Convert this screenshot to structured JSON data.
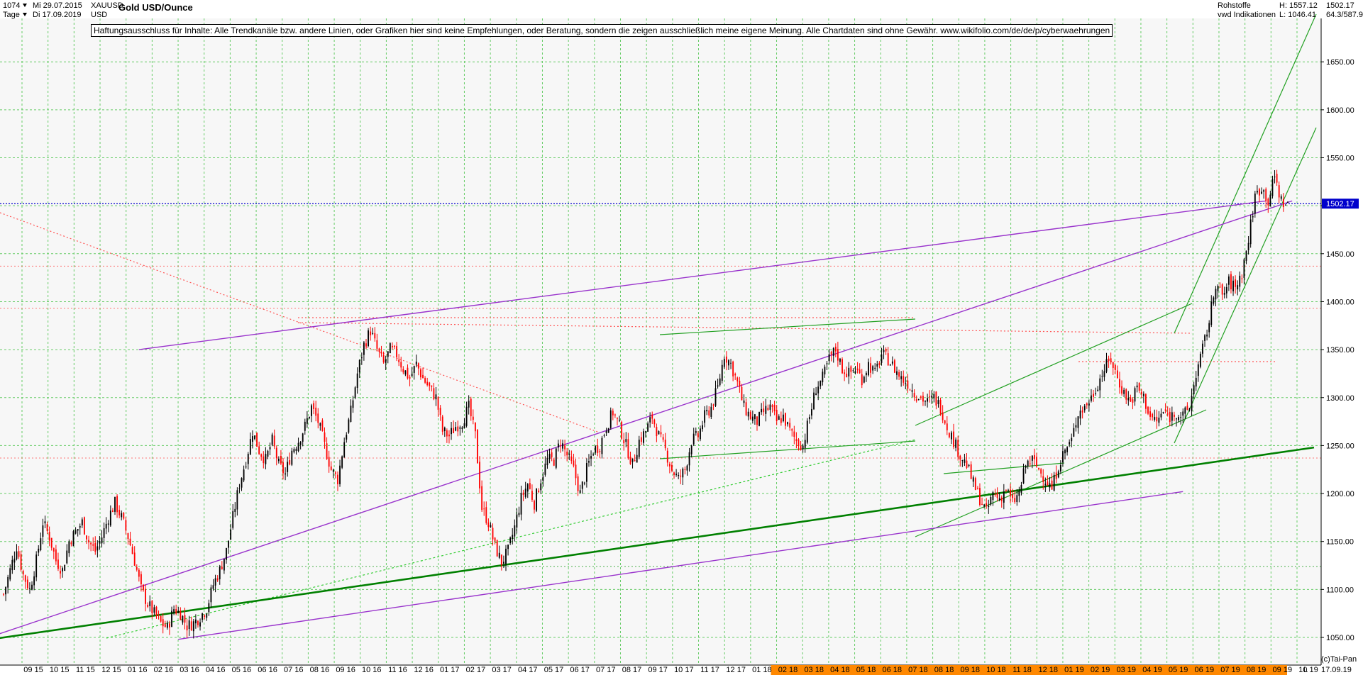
{
  "header": {
    "value_field": "1074",
    "date_start": "Mi 29.07.2015",
    "period": "Tage",
    "date_end": "Di 17.09.2019",
    "symbol": "XAUUSD",
    "currency": "USD",
    "title": "Gold USD/Ounce",
    "category": "Rohstoffe",
    "indicator": "vwd Indikationen",
    "high": "H: 1557.12",
    "low": "L: 1046.41",
    "last": "1502.17",
    "range": "64.3/587.9"
  },
  "disclaimer": "Haftungsausschluss für Inhalte: Alle Trendkanäle bzw. andere Linien, oder Grafiken hier sind keine Empfehlungen, oder Beratung, sondern die zeigen ausschließlich meine eigene Meinung. Alle Chartdaten sind ohne Gewähr.  www.wikifolio.com/de/de/p/cyberwaehrungen",
  "footer": {
    "credit": "(c)Tai-Pan",
    "scale_mode": "L",
    "date": "17.09.19"
  },
  "colors": {
    "up_candle": "#000000",
    "down_candle": "#ff0000",
    "grid": "#66cc66",
    "purple_line": "#9933cc",
    "green_line": "#22a022",
    "dark_green_line": "#008000",
    "red_dotted": "#ff5555",
    "price_line": "#0000cc",
    "future_axis": "#ff8800"
  },
  "chart_data": {
    "type": "candlestick",
    "title": "Gold USD/Ounce",
    "y_ticks": [
      1050,
      1100,
      1150,
      1200,
      1250,
      1300,
      1350,
      1400,
      1450,
      1500,
      1550,
      1600,
      1650
    ],
    "ylim": [
      1020,
      1720
    ],
    "x_ticks": [
      "09 15",
      "10 15",
      "11 15",
      "12 15",
      "01 16",
      "02 16",
      "03 16",
      "04 16",
      "05 16",
      "06 16",
      "07 16",
      "08 16",
      "09 16",
      "10 16",
      "11 16",
      "12 16",
      "01 17",
      "02 17",
      "03 17",
      "04 17",
      "05 17",
      "06 17",
      "07 17",
      "08 17",
      "09 17",
      "10 17",
      "11 17",
      "12 17",
      "01 18",
      "02 18",
      "03 18",
      "04 18",
      "05 18",
      "06 18",
      "07 18",
      "08 18",
      "09 18",
      "10 18",
      "11 18",
      "12 18",
      "01 19",
      "02 19",
      "03 19",
      "04 19",
      "05 19",
      "06 19",
      "07 19",
      "08 19",
      "09 19",
      "10 19"
    ],
    "future_ticks_from": "02 18",
    "last_price": 1502.17,
    "high": 1557.12,
    "low": 1046.41,
    "close_path": [
      [
        0,
        1095
      ],
      [
        3,
        1120
      ],
      [
        6,
        1145
      ],
      [
        9,
        1115
      ],
      [
        12,
        1100
      ],
      [
        15,
        1130
      ],
      [
        18,
        1170
      ],
      [
        21,
        1155
      ],
      [
        24,
        1130
      ],
      [
        27,
        1120
      ],
      [
        30,
        1150
      ],
      [
        33,
        1160
      ],
      [
        36,
        1170
      ],
      [
        39,
        1150
      ],
      [
        42,
        1140
      ],
      [
        45,
        1155
      ],
      [
        48,
        1175
      ],
      [
        51,
        1190
      ],
      [
        54,
        1175
      ],
      [
        57,
        1155
      ],
      [
        60,
        1130
      ],
      [
        63,
        1100
      ],
      [
        66,
        1085
      ],
      [
        69,
        1075
      ],
      [
        72,
        1065
      ],
      [
        75,
        1060
      ],
      [
        78,
        1080
      ],
      [
        81,
        1075
      ],
      [
        84,
        1062
      ],
      [
        87,
        1065
      ],
      [
        90,
        1072
      ],
      [
        93,
        1080
      ],
      [
        96,
        1105
      ],
      [
        99,
        1120
      ],
      [
        102,
        1140
      ],
      [
        105,
        1175
      ],
      [
        108,
        1210
      ],
      [
        111,
        1235
      ],
      [
        114,
        1265
      ],
      [
        117,
        1245
      ],
      [
        120,
        1235
      ],
      [
        123,
        1255
      ],
      [
        126,
        1230
      ],
      [
        129,
        1220
      ],
      [
        132,
        1245
      ],
      [
        135,
        1255
      ],
      [
        138,
        1270
      ],
      [
        141,
        1290
      ],
      [
        144,
        1275
      ],
      [
        147,
        1250
      ],
      [
        150,
        1225
      ],
      [
        153,
        1215
      ],
      [
        156,
        1255
      ],
      [
        159,
        1285
      ],
      [
        162,
        1325
      ],
      [
        165,
        1355
      ],
      [
        168,
        1370
      ],
      [
        171,
        1350
      ],
      [
        174,
        1335
      ],
      [
        177,
        1350
      ],
      [
        180,
        1345
      ],
      [
        183,
        1330
      ],
      [
        186,
        1320
      ],
      [
        189,
        1335
      ],
      [
        192,
        1320
      ],
      [
        195,
        1310
      ],
      [
        198,
        1300
      ],
      [
        201,
        1265
      ],
      [
        204,
        1260
      ],
      [
        207,
        1270
      ],
      [
        210,
        1275
      ],
      [
        213,
        1290
      ],
      [
        216,
        1260
      ],
      [
        219,
        1185
      ],
      [
        222,
        1170
      ],
      [
        225,
        1145
      ],
      [
        228,
        1128
      ],
      [
        231,
        1140
      ],
      [
        234,
        1165
      ],
      [
        237,
        1195
      ],
      [
        240,
        1210
      ],
      [
        243,
        1190
      ],
      [
        246,
        1215
      ],
      [
        249,
        1235
      ],
      [
        252,
        1235
      ],
      [
        255,
        1255
      ],
      [
        258,
        1240
      ],
      [
        261,
        1225
      ],
      [
        264,
        1200
      ],
      [
        267,
        1225
      ],
      [
        270,
        1245
      ],
      [
        273,
        1250
      ],
      [
        276,
        1270
      ],
      [
        279,
        1285
      ],
      [
        282,
        1270
      ],
      [
        285,
        1250
      ],
      [
        288,
        1230
      ],
      [
        291,
        1255
      ],
      [
        294,
        1265
      ],
      [
        297,
        1280
      ],
      [
        300,
        1260
      ],
      [
        303,
        1245
      ],
      [
        306,
        1225
      ],
      [
        309,
        1215
      ],
      [
        312,
        1225
      ],
      [
        315,
        1255
      ],
      [
        318,
        1260
      ],
      [
        321,
        1280
      ],
      [
        324,
        1290
      ],
      [
        327,
        1310
      ],
      [
        330,
        1345
      ],
      [
        333,
        1335
      ],
      [
        336,
        1315
      ],
      [
        339,
        1290
      ],
      [
        342,
        1280
      ],
      [
        345,
        1275
      ],
      [
        348,
        1285
      ],
      [
        351,
        1290
      ],
      [
        354,
        1275
      ],
      [
        357,
        1280
      ],
      [
        360,
        1265
      ],
      [
        363,
        1255
      ],
      [
        366,
        1250
      ],
      [
        369,
        1280
      ],
      [
        372,
        1310
      ],
      [
        375,
        1320
      ],
      [
        378,
        1340
      ],
      [
        381,
        1350
      ],
      [
        384,
        1330
      ],
      [
        387,
        1325
      ],
      [
        390,
        1330
      ],
      [
        393,
        1320
      ],
      [
        396,
        1335
      ],
      [
        399,
        1325
      ],
      [
        402,
        1345
      ],
      [
        405,
        1340
      ],
      [
        408,
        1330
      ],
      [
        411,
        1320
      ],
      [
        414,
        1315
      ],
      [
        417,
        1305
      ],
      [
        420,
        1300
      ],
      [
        423,
        1295
      ],
      [
        426,
        1300
      ],
      [
        429,
        1290
      ],
      [
        432,
        1270
      ],
      [
        435,
        1255
      ],
      [
        438,
        1240
      ],
      [
        441,
        1230
      ],
      [
        444,
        1210
      ],
      [
        447,
        1195
      ],
      [
        450,
        1180
      ],
      [
        453,
        1200
      ],
      [
        456,
        1195
      ],
      [
        459,
        1205
      ],
      [
        462,
        1190
      ],
      [
        465,
        1200
      ],
      [
        468,
        1230
      ],
      [
        471,
        1235
      ],
      [
        474,
        1225
      ],
      [
        477,
        1215
      ],
      [
        480,
        1205
      ],
      [
        483,
        1230
      ],
      [
        486,
        1245
      ],
      [
        489,
        1255
      ],
      [
        492,
        1285
      ],
      [
        495,
        1290
      ],
      [
        498,
        1300
      ],
      [
        501,
        1315
      ],
      [
        504,
        1330
      ],
      [
        507,
        1340
      ],
      [
        510,
        1320
      ],
      [
        513,
        1305
      ],
      [
        516,
        1295
      ],
      [
        519,
        1310
      ],
      [
        522,
        1300
      ],
      [
        525,
        1280
      ],
      [
        528,
        1275
      ],
      [
        531,
        1285
      ],
      [
        534,
        1280
      ],
      [
        537,
        1285
      ],
      [
        540,
        1280
      ],
      [
        543,
        1290
      ],
      [
        546,
        1325
      ],
      [
        549,
        1350
      ],
      [
        552,
        1380
      ],
      [
        555,
        1420
      ],
      [
        558,
        1405
      ],
      [
        561,
        1420
      ],
      [
        564,
        1415
      ],
      [
        567,
        1430
      ],
      [
        570,
        1465
      ],
      [
        573,
        1510
      ],
      [
        576,
        1520
      ],
      [
        579,
        1505
      ],
      [
        582,
        1530
      ],
      [
        585,
        1505
      ],
      [
        588,
        1500
      ]
    ],
    "closes_note": "",
    "trend_lines": [
      {
        "name": "",
        "color": "purple",
        "points": [
          [
            -20,
            1040
          ],
          [
            590,
            1505
          ]
        ]
      },
      {
        "name": "",
        "color": "purple",
        "points": [
          [
            62,
            1350
          ],
          [
            578,
            1505
          ]
        ]
      },
      {
        "name": "",
        "color": "purple",
        "points": [
          [
            80,
            1048
          ],
          [
            540,
            1202
          ]
        ]
      },
      {
        "name": "",
        "color": "dark_green",
        "points": [
          [
            -30,
            1040
          ],
          [
            600,
            1248
          ]
        ]
      }
    ],
    "horizontal_levels": [
      1502.17,
      1437,
      1393,
      1237,
      1124
    ]
  }
}
